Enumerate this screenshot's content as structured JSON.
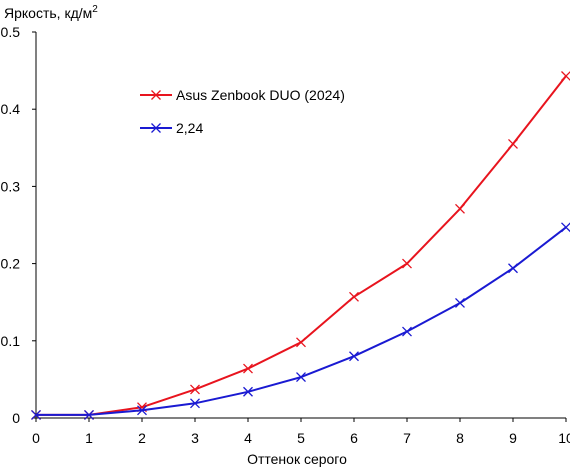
{
  "chart_data": {
    "type": "line",
    "ylabel": "Яркость, кд/м",
    "ylabel_sup": "2",
    "xlabel": "Оттенок серого",
    "x": [
      0,
      1,
      2,
      3,
      4,
      5,
      6,
      7,
      8,
      9,
      10
    ],
    "xlim": [
      0,
      10
    ],
    "ylim": [
      0,
      0.5
    ],
    "x_ticks": [
      "0",
      "1",
      "2",
      "3",
      "4",
      "5",
      "6",
      "7",
      "8",
      "9",
      "10"
    ],
    "y_ticks": [
      "0",
      "0.1",
      "0.2",
      "0.3",
      "0.4",
      "0.5"
    ],
    "y_tick_values": [
      0,
      0.1,
      0.2,
      0.3,
      0.4,
      0.5
    ],
    "grid": false,
    "legend_position": "top-left",
    "series": [
      {
        "name": "Asus Zenbook DUO (2024)",
        "color": "#e8141e",
        "values": [
          0.004,
          0.004,
          0.014,
          0.037,
          0.064,
          0.098,
          0.157,
          0.2,
          0.271,
          0.355,
          0.443
        ]
      },
      {
        "name": "2,24",
        "color": "#1a1ad2",
        "values": [
          0.004,
          0.004,
          0.01,
          0.019,
          0.034,
          0.053,
          0.08,
          0.112,
          0.149,
          0.194,
          0.247
        ]
      }
    ]
  }
}
